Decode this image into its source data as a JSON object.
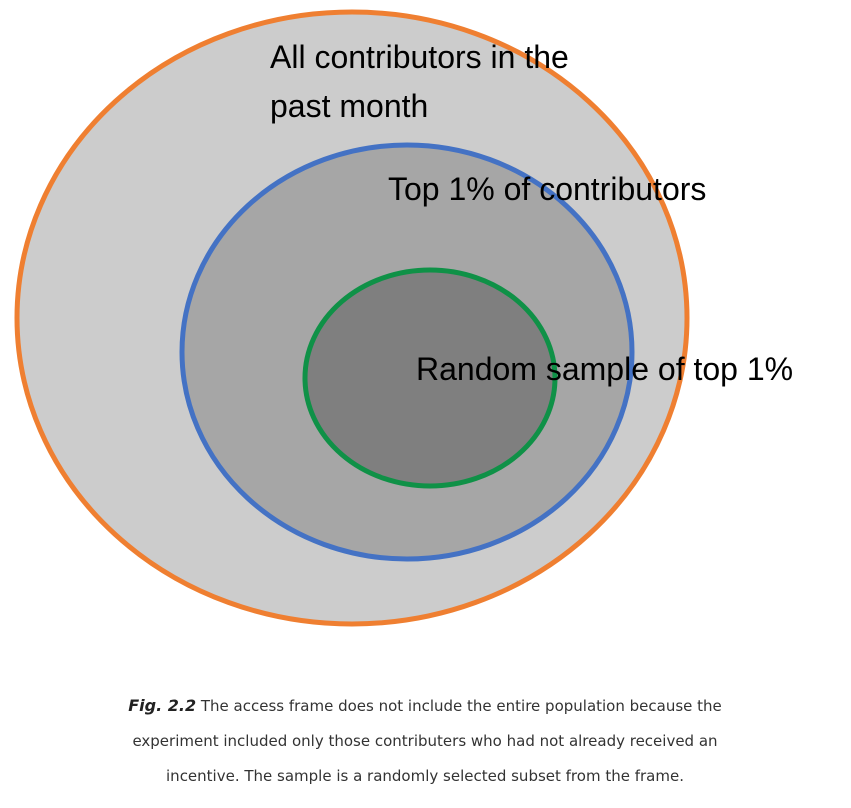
{
  "diagram": {
    "regions": [
      {
        "id": "all-contributors",
        "label_lines": [
          "All contributors in the",
          "past month"
        ],
        "fill": "#cccccc",
        "stroke": "#ef7f31"
      },
      {
        "id": "top-1-percent",
        "label_lines": [
          "Top 1% of contributors"
        ],
        "fill": "#a6a6a6",
        "stroke": "#4472c4"
      },
      {
        "id": "random-sample",
        "label_lines": [
          "Random sample of top 1%"
        ],
        "fill": "#7f7f7f",
        "stroke": "#0f9147"
      }
    ]
  },
  "caption": {
    "figure_number": "Fig. 2.2",
    "lines": [
      "The access frame does not include the entire population because the",
      "experiment included only those contributers who had not already received an",
      "incentive. The sample is a randomly selected subset from the frame."
    ]
  }
}
